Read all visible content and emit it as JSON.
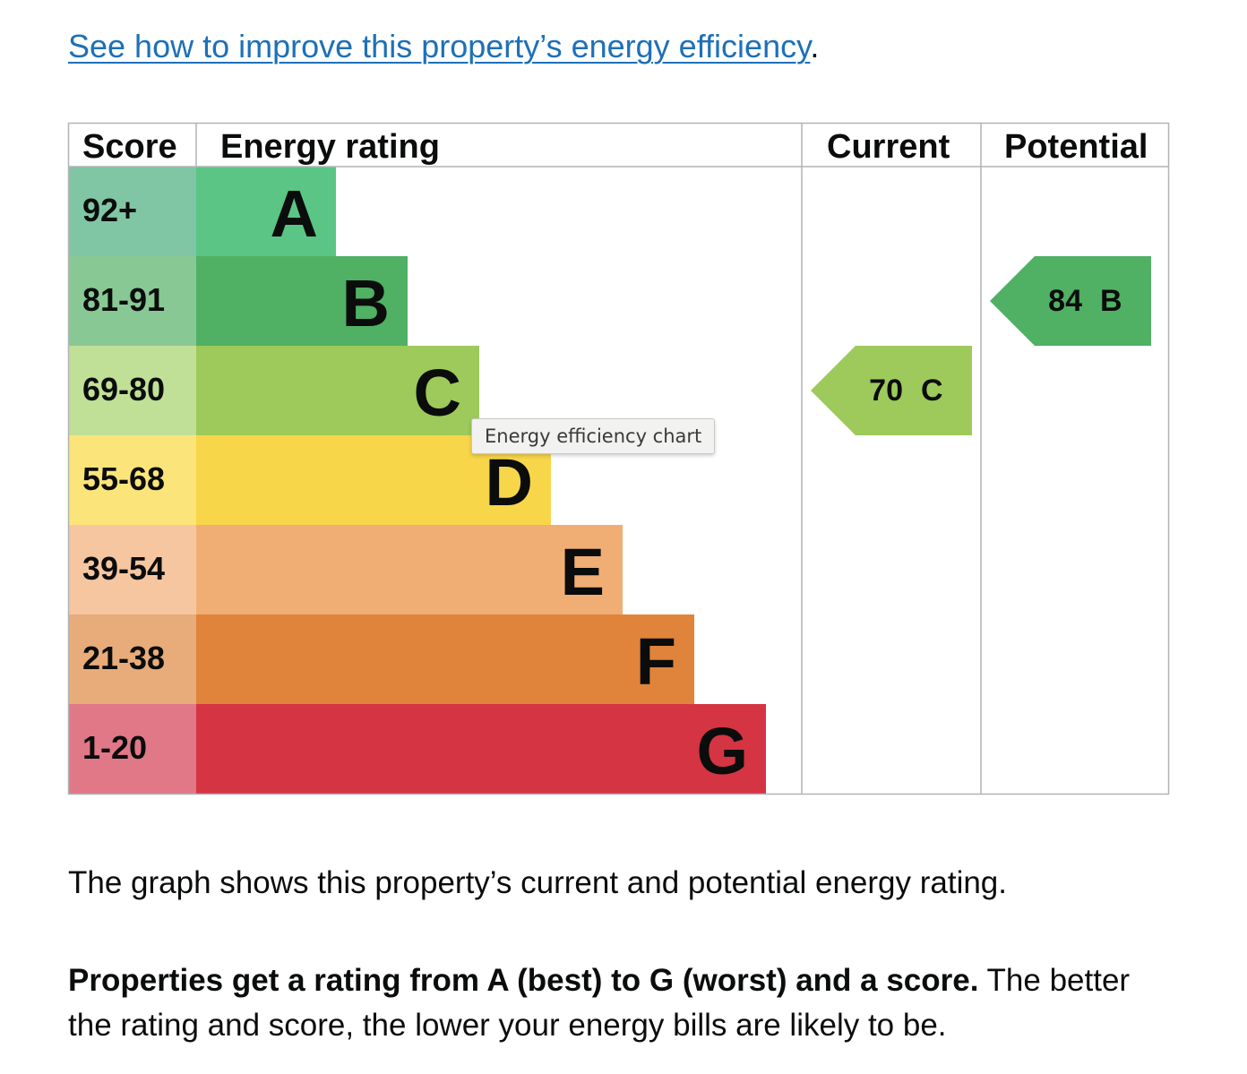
{
  "improve": {
    "link_text": "See how to improve this property’s energy efficiency",
    "after_link": "."
  },
  "tooltip": {
    "text": "Energy efficiency chart"
  },
  "colors": {
    "A": "#5ac585",
    "B": "#50b064",
    "C": "#9dca5b",
    "D": "#f8d64a",
    "E": "#f0ae74",
    "F": "#e0843b",
    "G": "#d53442",
    "A_score": "#80c6a5",
    "B_score": "#88c894",
    "C_score": "#c1e097",
    "D_score": "#fbe57a",
    "E_score": "#f5c6a0",
    "F_score": "#e8ab7a",
    "G_score": "#e07888",
    "grid": "#b1b4b6",
    "text": "#0b0c0c"
  },
  "chart_data": {
    "type": "bar",
    "headers": {
      "score": "Score",
      "rating": "Energy rating",
      "current": "Current",
      "potential": "Potential"
    },
    "bands": [
      {
        "letter": "A",
        "score": "92+"
      },
      {
        "letter": "B",
        "score": "81-91"
      },
      {
        "letter": "C",
        "score": "69-80"
      },
      {
        "letter": "D",
        "score": "55-68"
      },
      {
        "letter": "E",
        "score": "39-54"
      },
      {
        "letter": "F",
        "score": "21-38"
      },
      {
        "letter": "G",
        "score": "1-20"
      }
    ],
    "current": {
      "value": 70,
      "band": "C"
    },
    "potential": {
      "value": 84,
      "band": "B"
    }
  },
  "text": {
    "para1": "The graph shows this property’s current and potential energy rating.",
    "para2_bold": "Properties get a rating from A (best) to G (worst) and a score.",
    "para2_rest": " The better the rating and score, the lower your energy bills are likely to be."
  }
}
